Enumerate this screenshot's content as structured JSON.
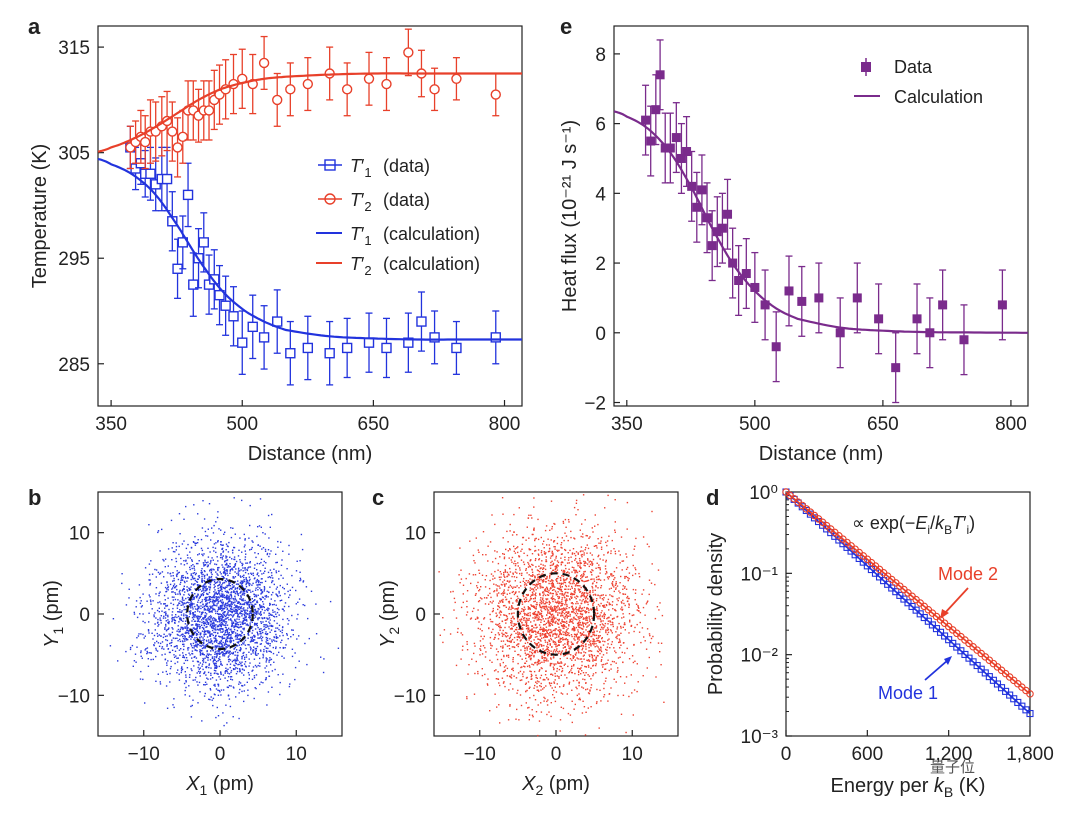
{
  "chart_data": [
    {
      "panel": "a",
      "type": "scatter",
      "xlabel": "Distance (nm)",
      "ylabel": "Temperature (K)",
      "xlim": [
        335,
        820
      ],
      "ylim": [
        281,
        317
      ],
      "xticks": [
        "350",
        "500",
        "650",
        "800"
      ],
      "yticks": [
        "285",
        "295",
        "305",
        "315"
      ],
      "series": [
        {
          "name": "T′1 (data)",
          "marker": "open-square",
          "color": "#2233dd",
          "x": [
            372,
            378,
            384,
            389,
            395,
            401,
            408,
            414,
            420,
            426,
            432,
            438,
            444,
            450,
            456,
            462,
            468,
            474,
            481,
            490,
            500,
            512,
            525,
            540,
            555,
            575,
            600,
            620,
            645,
            665,
            690,
            705,
            720,
            745,
            790
          ],
          "y": [
            305.5,
            303.5,
            304.0,
            303.0,
            303.0,
            302.0,
            302.5,
            302.5,
            298.5,
            294.0,
            296.5,
            301.0,
            292.5,
            295.0,
            296.5,
            292.5,
            293.0,
            291.5,
            290.5,
            289.5,
            287.0,
            288.5,
            287.5,
            289.0,
            286.0,
            286.5,
            286.0,
            286.5,
            287.0,
            286.5,
            287.0,
            289.0,
            287.5,
            286.5,
            287.5
          ],
          "err": [
            2.0,
            2.0,
            2.0,
            2.2,
            2.5,
            2.5,
            3.0,
            3.0,
            2.8,
            2.8,
            2.5,
            3.0,
            3.0,
            2.8,
            2.8,
            2.8,
            2.8,
            2.8,
            2.8,
            2.8,
            3.0,
            3.0,
            3.0,
            3.0,
            3.0,
            3.0,
            3.0,
            2.8,
            2.8,
            2.8,
            2.8,
            2.8,
            2.5,
            2.5,
            2.5
          ]
        },
        {
          "name": "T′2 (data)",
          "marker": "open-circle",
          "color": "#e8402a",
          "x": [
            372,
            378,
            384,
            389,
            395,
            401,
            408,
            414,
            420,
            426,
            432,
            438,
            444,
            450,
            456,
            462,
            468,
            474,
            481,
            490,
            500,
            512,
            525,
            540,
            555,
            575,
            600,
            620,
            645,
            665,
            690,
            705,
            720,
            745,
            790
          ],
          "y": [
            305.5,
            306.0,
            306.5,
            306.0,
            307.0,
            307.0,
            307.5,
            308.0,
            307.0,
            305.5,
            306.5,
            309.0,
            309.0,
            308.5,
            309.0,
            309.0,
            310.0,
            310.5,
            311.0,
            311.5,
            312.0,
            311.5,
            313.5,
            310.0,
            311.0,
            311.5,
            312.5,
            311.0,
            312.0,
            311.5,
            314.5,
            312.5,
            311.0,
            312.0,
            310.5
          ],
          "err": [
            2.0,
            2.0,
            2.5,
            2.5,
            3.0,
            2.8,
            2.8,
            2.8,
            2.8,
            2.8,
            2.5,
            2.8,
            2.8,
            2.5,
            2.8,
            2.8,
            2.8,
            2.8,
            2.8,
            2.8,
            2.8,
            2.8,
            2.5,
            2.5,
            2.5,
            2.5,
            2.5,
            2.5,
            2.5,
            2.5,
            2.2,
            2.2,
            2.0,
            2.0,
            2.0
          ]
        },
        {
          "name": "T′1 (calculation)",
          "type": "line",
          "color": "#2233dd",
          "x": [
            335,
            350,
            375,
            400,
            425,
            450,
            475,
            500,
            525,
            550,
            600,
            650,
            700,
            750,
            820
          ],
          "y": [
            304.4,
            303.9,
            302.9,
            301.1,
            298.2,
            294.9,
            292.1,
            290.2,
            289.0,
            288.2,
            287.6,
            287.4,
            287.3,
            287.3,
            287.3
          ]
        },
        {
          "name": "T′2 (calculation)",
          "type": "line",
          "color": "#e8402a",
          "x": [
            335,
            350,
            375,
            400,
            425,
            450,
            475,
            500,
            525,
            550,
            600,
            650,
            700,
            750,
            820
          ],
          "y": [
            305.1,
            305.5,
            306.3,
            307.4,
            308.7,
            310.0,
            311.0,
            311.6,
            312.0,
            312.2,
            312.4,
            312.5,
            312.5,
            312.5,
            312.5
          ]
        }
      ]
    },
    {
      "panel": "e",
      "type": "scatter",
      "xlabel": "Distance (nm)",
      "ylabel": "Heat flux (10⁻²¹ J s⁻¹)",
      "xlim": [
        335,
        820
      ],
      "ylim": [
        -2.1,
        8.8
      ],
      "xticks": [
        "350",
        "500",
        "650",
        "800"
      ],
      "yticks": [
        "−2",
        "0",
        "2",
        "4",
        "6",
        "8"
      ],
      "series": [
        {
          "name": "Data",
          "marker": "filled-square",
          "color": "#7a2b8c",
          "x": [
            372,
            378,
            384,
            389,
            395,
            401,
            408,
            414,
            420,
            426,
            432,
            438,
            444,
            450,
            456,
            462,
            468,
            474,
            481,
            490,
            500,
            512,
            525,
            540,
            555,
            575,
            600,
            620,
            645,
            665,
            690,
            705,
            720,
            745,
            790
          ],
          "y": [
            6.1,
            5.5,
            6.4,
            7.4,
            5.3,
            5.3,
            5.6,
            5.0,
            5.2,
            4.2,
            3.6,
            4.1,
            3.3,
            2.5,
            2.9,
            3.0,
            3.4,
            2.0,
            1.5,
            1.7,
            1.3,
            0.8,
            -0.4,
            1.2,
            0.9,
            1.0,
            0.0,
            1.0,
            0.4,
            -1.0,
            0.4,
            0.0,
            0.8,
            -0.2,
            0.8
          ]
        },
        {
          "name": "Calculation",
          "type": "line",
          "color": "#7a2b8c",
          "x": [
            335,
            350,
            375,
            400,
            425,
            450,
            475,
            500,
            525,
            550,
            600,
            650,
            700,
            750,
            820
          ],
          "y": [
            6.35,
            6.2,
            5.85,
            5.2,
            4.2,
            3.0,
            1.95,
            1.2,
            0.7,
            0.4,
            0.15,
            0.06,
            0.02,
            0.01,
            0.0
          ]
        }
      ]
    },
    {
      "panel": "b",
      "type": "scatter",
      "xlabel": "X1 (pm)",
      "ylabel": "Y1 (pm)",
      "xlim": [
        -16,
        16
      ],
      "ylim": [
        -15,
        15
      ],
      "xticks": [
        "−10",
        "0",
        "10"
      ],
      "yticks": [
        "−10",
        "0",
        "10"
      ],
      "point_color": "#2b3bdd",
      "point_count": 3000,
      "sigma_pm": 4.5,
      "dashed_circle_radius_pm": 4.3
    },
    {
      "panel": "c",
      "type": "scatter",
      "xlabel": "X2 (pm)",
      "ylabel": "Y2 (pm)",
      "xlim": [
        -16,
        16
      ],
      "ylim": [
        -15,
        15
      ],
      "xticks": [
        "−10",
        "0",
        "10"
      ],
      "yticks": [
        "−10",
        "0",
        "10"
      ],
      "point_color": "#ee4433",
      "point_count": 3000,
      "sigma_pm": 5.2,
      "dashed_circle_radius_pm": 5.0
    },
    {
      "panel": "d",
      "type": "line",
      "xlabel": "Energy per kB (K)",
      "ylabel": "Probability density",
      "xlim": [
        0,
        1800
      ],
      "ylim_log10": [
        -3,
        0
      ],
      "log_y": true,
      "xticks": [
        "0",
        "600",
        "1,200",
        "1,800"
      ],
      "yticks": [
        "10⁰",
        "10⁻¹",
        "10⁻²",
        "10⁻³"
      ],
      "annotation": "∝ exp(−Ei/kBT′i)",
      "series": [
        {
          "name": "Mode 1",
          "color": "#2233dd",
          "marker": "open-square",
          "T_K": 287,
          "amplitude": 1.0,
          "n_points": 60
        },
        {
          "name": "Mode 2",
          "color": "#e8402a",
          "marker": "open-circle",
          "T_K": 315,
          "amplitude": 1.0,
          "n_points": 60
        }
      ]
    }
  ],
  "panel_labels": [
    "a",
    "e",
    "b",
    "c",
    "d"
  ],
  "legend_a": [
    "(data)",
    "(data)",
    "(calculation)",
    "(calculation)"
  ],
  "legend_e": [
    "Data",
    "Calculation"
  ],
  "watermark": "量子位"
}
